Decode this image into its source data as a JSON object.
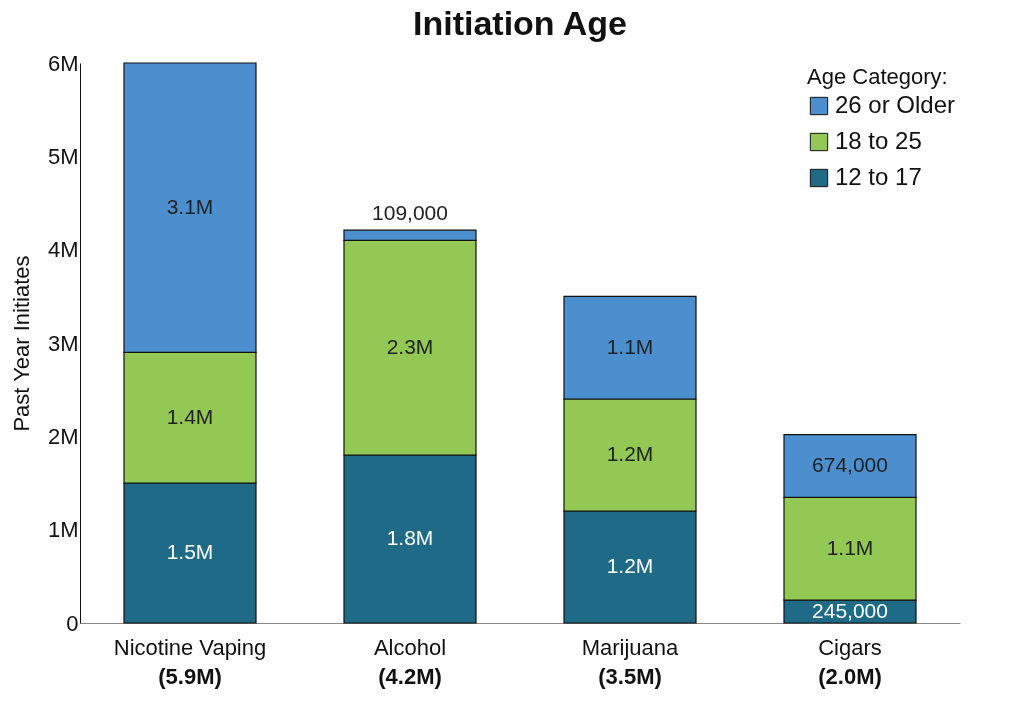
{
  "chart_data": {
    "type": "bar",
    "title": "Initiation Age",
    "ylabel": "Past Year Initiates",
    "legend_title": "Age Category:",
    "stacked": true,
    "legend": "top right",
    "grid": false,
    "categories": [
      "Nicotine Vaping",
      "Alcohol",
      "Marijuana",
      "Cigars"
    ],
    "series": [
      {
        "name": "12 to 17",
        "color": "#1f6b87",
        "values": [
          1500000,
          1800000,
          1200000,
          245000
        ],
        "value_labels": [
          "1.5M",
          "1.8M",
          "1.2M",
          "245,000"
        ]
      },
      {
        "name": "18 to 25",
        "color": "#92c853",
        "values": [
          1400000,
          2300000,
          1200000,
          1100000
        ],
        "value_labels": [
          "1.4M",
          "2.3M",
          "1.2M",
          "1.1M"
        ]
      },
      {
        "name": "26 or Older",
        "color": "#4c8fce",
        "values": [
          3100000,
          109000,
          1100000,
          674000
        ],
        "value_labels": [
          "3.1M",
          "109,000",
          "1.1M",
          "674,000"
        ]
      }
    ],
    "totals": [
      "(5.9M)",
      "(4.2M)",
      "(3.5M)",
      "(2.0M)"
    ],
    "ylim": [
      0,
      6000000
    ],
    "yticks": [
      0,
      {
        "value": 1000000,
        "label": "1M"
      },
      {
        "value": 2000000,
        "label": "2M"
      },
      {
        "value": 3000000,
        "label": "3M"
      },
      {
        "value": 4000000,
        "label": "4M"
      },
      {
        "value": 5000000,
        "label": "5M"
      },
      {
        "value": 6000000,
        "label": "6M"
      }
    ]
  }
}
